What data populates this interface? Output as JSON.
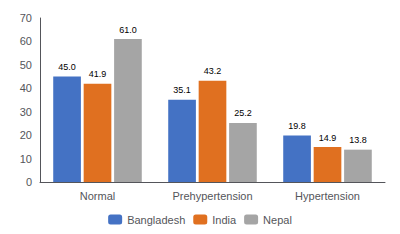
{
  "chart_data": {
    "type": "bar",
    "categories": [
      "Normal",
      "Prehypertension",
      "Hypertension"
    ],
    "series": [
      {
        "name": "Bangladesh",
        "color": "#4472c4",
        "values": [
          45.0,
          35.1,
          19.8
        ],
        "value_labels": [
          "45.0",
          "35.1",
          "19.8"
        ]
      },
      {
        "name": "India",
        "color": "#e07020",
        "values": [
          41.9,
          43.2,
          14.9
        ],
        "value_labels": [
          "41.9",
          "43.2",
          "14.9"
        ]
      },
      {
        "name": "Nepal",
        "color": "#a5a5a5",
        "values": [
          61.0,
          25.2,
          13.8
        ],
        "value_labels": [
          "61.0",
          "25.2",
          "13.8"
        ]
      }
    ],
    "ylim": [
      0,
      70
    ],
    "yticks": [
      0,
      10,
      20,
      30,
      40,
      50,
      60,
      70
    ],
    "grid": false,
    "legend": "bottom",
    "data_labels": true
  }
}
